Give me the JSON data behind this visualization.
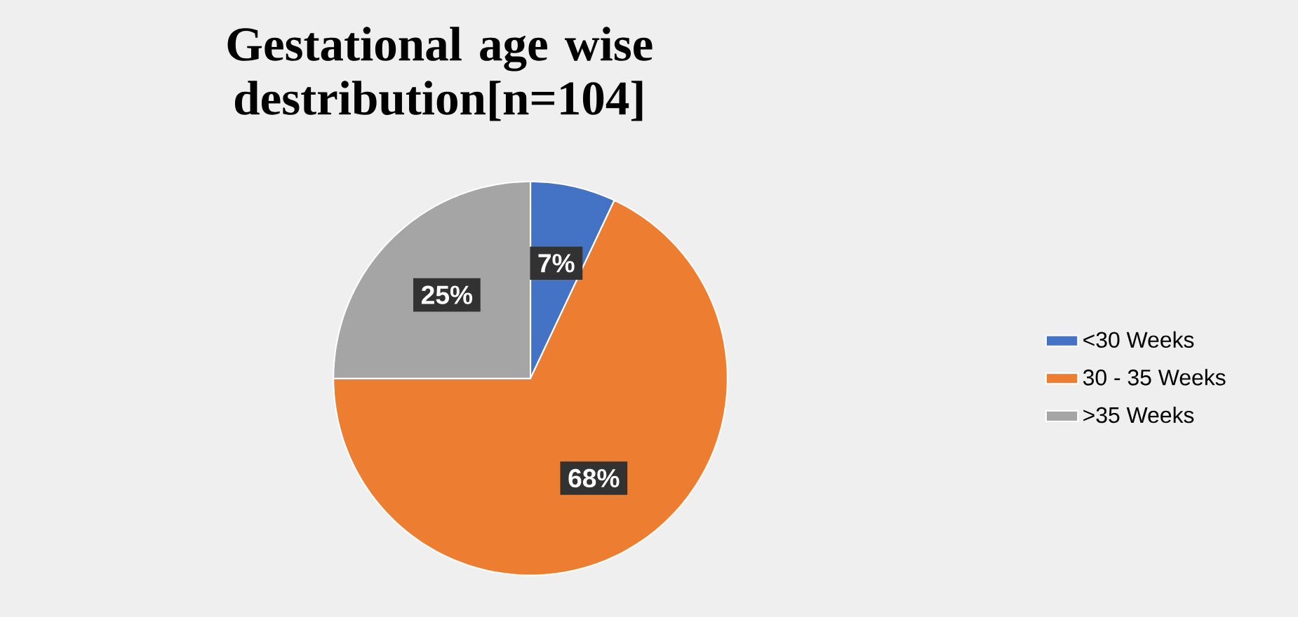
{
  "chart_data": {
    "type": "pie",
    "title": "Gestational age wise destribution[n=104]",
    "categories": [
      "<30 Weeks",
      "30 - 35 Weeks",
      ">35 Weeks"
    ],
    "values": [
      7,
      68,
      25
    ],
    "value_labels": [
      "7%",
      "68%",
      "25%"
    ],
    "colors": [
      "#4472c4",
      "#ed7d31",
      "#a5a5a5"
    ],
    "legend": "right"
  }
}
